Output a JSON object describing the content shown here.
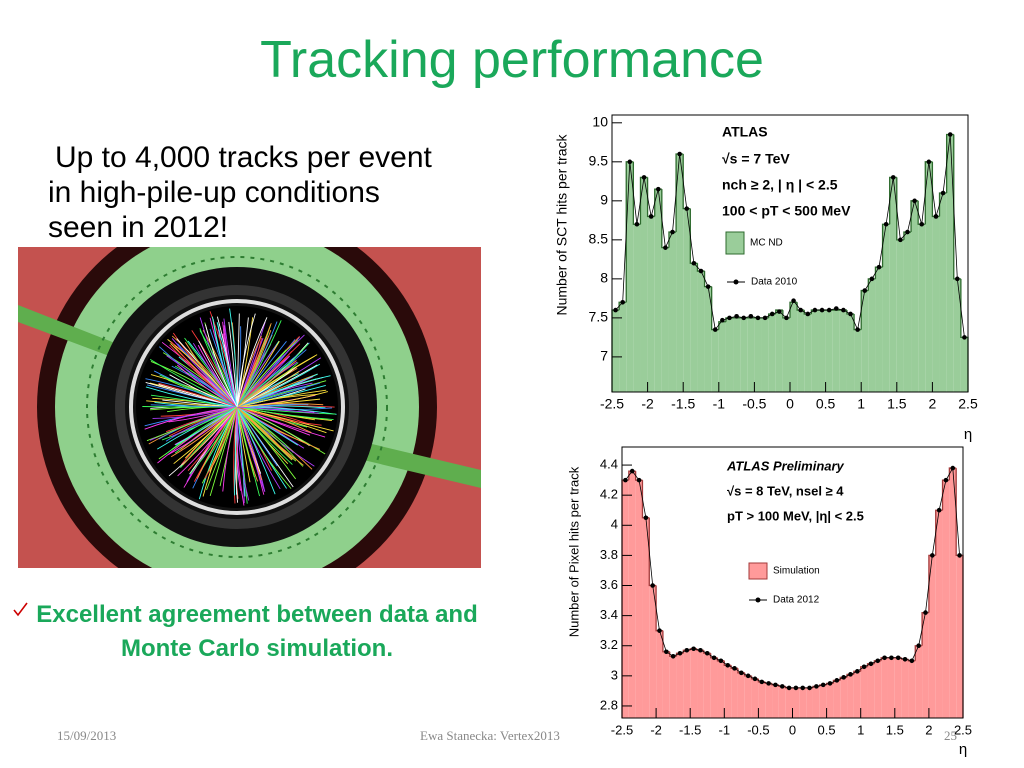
{
  "slide": {
    "title": "Tracking performance",
    "bullet": "Up to 4,000 tracks per event in high-pile-up conditions seen in 2012!",
    "conclusion": "Excellent agreement between data and Monte Carlo simulation.",
    "footer": {
      "date": "15/09/2013",
      "author": "Ewa Stanecka: Vertex2013",
      "page": "25"
    }
  },
  "chart_data": [
    {
      "type": "histogram",
      "ylabel": "Number of SCT hits per track",
      "xlabel": "η",
      "annotations": [
        "ATLAS",
        "√s = 7 TeV",
        "nch ≥ 2, | η | < 2.5",
        "100 < pT < 500 MeV"
      ],
      "bins": [
        -2.5,
        -2.4,
        -2.3,
        -2.2,
        -2.1,
        -2.0,
        -1.9,
        -1.8,
        -1.7,
        -1.6,
        -1.5,
        -1.4,
        -1.3,
        -1.2,
        -1.1,
        -1.0,
        -0.9,
        -0.8,
        -0.7,
        -0.6,
        -0.5,
        -0.4,
        -0.3,
        -0.2,
        -0.1,
        0,
        0.1,
        0.2,
        0.3,
        0.4,
        0.5,
        0.6,
        0.7,
        0.8,
        0.9,
        1.0,
        1.1,
        1.2,
        1.3,
        1.4,
        1.5,
        1.6,
        1.7,
        1.8,
        1.9,
        2.0,
        2.1,
        2.2,
        2.3,
        2.4,
        2.5
      ],
      "series": [
        {
          "name": "MC ND",
          "color": "#9acd9a",
          "style": "hist",
          "values": [
            7.6,
            7.7,
            9.5,
            8.7,
            9.3,
            8.8,
            9.15,
            8.4,
            8.6,
            9.6,
            8.9,
            8.2,
            8.1,
            7.9,
            7.35,
            7.45,
            7.5,
            7.5,
            7.5,
            7.5,
            7.5,
            7.5,
            7.55,
            7.6,
            7.5,
            7.7,
            7.6,
            7.55,
            7.6,
            7.6,
            7.6,
            7.6,
            7.6,
            7.55,
            7.35,
            7.85,
            8.0,
            8.15,
            8.7,
            9.3,
            8.5,
            8.6,
            9.0,
            8.7,
            9.5,
            8.8,
            9.1,
            9.85,
            8.0,
            7.25
          ]
        },
        {
          "name": "Data 2010",
          "color": "#000000",
          "style": "points",
          "values": [
            7.6,
            7.7,
            9.5,
            8.7,
            9.3,
            8.8,
            9.15,
            8.4,
            8.6,
            9.6,
            8.9,
            8.2,
            8.1,
            7.9,
            7.35,
            7.47,
            7.5,
            7.52,
            7.5,
            7.52,
            7.5,
            7.5,
            7.55,
            7.58,
            7.5,
            7.72,
            7.6,
            7.55,
            7.6,
            7.6,
            7.6,
            7.62,
            7.6,
            7.55,
            7.35,
            7.85,
            8.0,
            8.15,
            8.7,
            9.3,
            8.5,
            8.6,
            9.0,
            8.7,
            9.5,
            8.8,
            9.1,
            9.85,
            8.0,
            7.25
          ]
        }
      ],
      "xlim": [
        -2.5,
        2.5
      ],
      "xticks": [
        -2.5,
        -2,
        -1.5,
        -1,
        -0.5,
        0,
        0.5,
        1,
        1.5,
        2,
        2.5
      ],
      "ylim": [
        6.55,
        10.1
      ],
      "yticks": [
        7,
        7.5,
        8,
        8.5,
        9,
        9.5,
        10
      ],
      "grid": false
    },
    {
      "type": "histogram",
      "ylabel": "Number of Pixel hits per track",
      "xlabel": "η",
      "annotations": [
        "ATLAS Preliminary",
        "√s = 8 TeV, nsel ≥ 4",
        "pT > 100 MeV, |η| < 2.5"
      ],
      "bins": [
        -2.5,
        -2.4,
        -2.3,
        -2.2,
        -2.1,
        -2.0,
        -1.9,
        -1.8,
        -1.7,
        -1.6,
        -1.5,
        -1.4,
        -1.3,
        -1.2,
        -1.1,
        -1.0,
        -0.9,
        -0.8,
        -0.7,
        -0.6,
        -0.5,
        -0.4,
        -0.3,
        -0.2,
        -0.1,
        0,
        0.1,
        0.2,
        0.3,
        0.4,
        0.5,
        0.6,
        0.7,
        0.8,
        0.9,
        1.0,
        1.1,
        1.2,
        1.3,
        1.4,
        1.5,
        1.6,
        1.7,
        1.8,
        1.9,
        2.0,
        2.1,
        2.2,
        2.3,
        2.4,
        2.5
      ],
      "series": [
        {
          "name": "Simulation",
          "color": "#ff9a9a",
          "style": "hist",
          "values": [
            4.3,
            4.36,
            4.3,
            4.05,
            3.6,
            3.3,
            3.16,
            3.13,
            3.15,
            3.17,
            3.18,
            3.17,
            3.15,
            3.12,
            3.1,
            3.07,
            3.05,
            3.02,
            3.0,
            2.98,
            2.96,
            2.95,
            2.94,
            2.93,
            2.92,
            2.92,
            2.92,
            2.92,
            2.93,
            2.94,
            2.95,
            2.97,
            2.99,
            3.01,
            3.03,
            3.06,
            3.08,
            3.1,
            3.12,
            3.12,
            3.12,
            3.11,
            3.1,
            3.2,
            3.42,
            3.8,
            4.1,
            4.3,
            4.38,
            3.8
          ]
        },
        {
          "name": "Data 2012",
          "color": "#000000",
          "style": "points",
          "values": [
            4.3,
            4.36,
            4.3,
            4.05,
            3.6,
            3.3,
            3.16,
            3.13,
            3.15,
            3.17,
            3.18,
            3.17,
            3.15,
            3.12,
            3.1,
            3.07,
            3.05,
            3.02,
            3.0,
            2.98,
            2.96,
            2.95,
            2.94,
            2.93,
            2.92,
            2.92,
            2.92,
            2.92,
            2.93,
            2.94,
            2.95,
            2.97,
            2.99,
            3.01,
            3.03,
            3.06,
            3.08,
            3.1,
            3.12,
            3.12,
            3.12,
            3.11,
            3.1,
            3.2,
            3.42,
            3.8,
            4.1,
            4.3,
            4.38,
            3.8
          ]
        }
      ],
      "xlim": [
        -2.5,
        2.5
      ],
      "xticks": [
        -2.5,
        -2,
        -1.5,
        -1,
        -0.5,
        0,
        0.5,
        1,
        1.5,
        2,
        2.5
      ],
      "ylim": [
        2.72,
        4.52
      ],
      "yticks": [
        2.8,
        3,
        3.2,
        3.4,
        3.6,
        3.8,
        4,
        4.2,
        4.4
      ],
      "grid": false
    }
  ]
}
